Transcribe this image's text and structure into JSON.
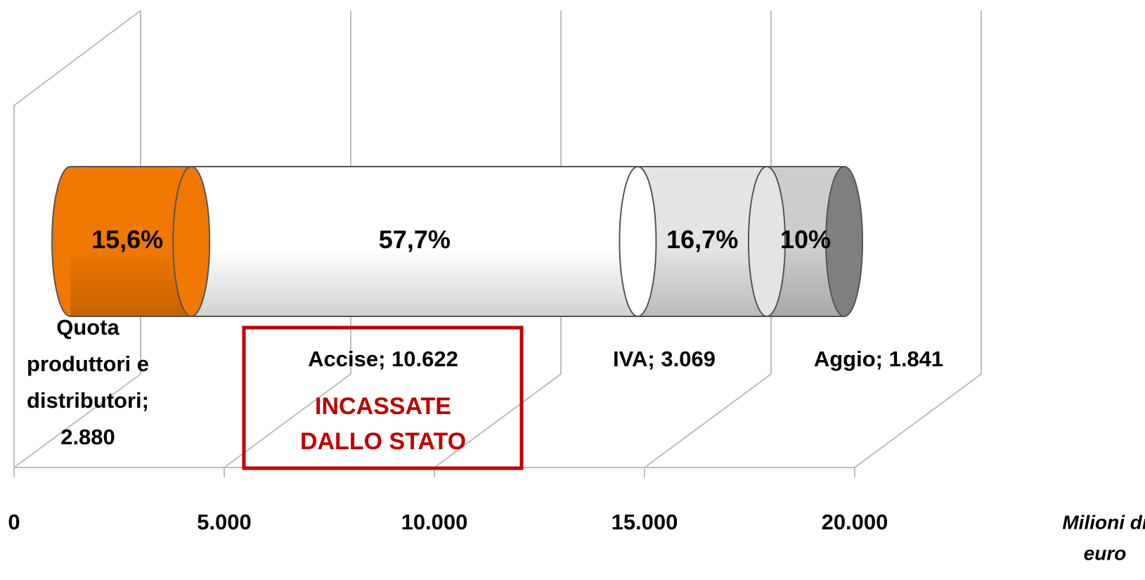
{
  "chart_data": {
    "type": "bar",
    "orientation": "horizontal",
    "stacked": true,
    "series": [
      {
        "label_lines": [
          "Quota",
          "produttori e",
          "distributori;",
          "2.880"
        ],
        "values": [
          2880
        ],
        "share": 15.6,
        "share_label": "15,6%",
        "color": "#f07800"
      },
      {
        "label_lines": [
          "Accise; 10.622"
        ],
        "values": [
          10622
        ],
        "share": 57.7,
        "share_label": "57,7%",
        "color": "#ffffff"
      },
      {
        "label_lines": [
          "IVA; 3.069"
        ],
        "values": [
          3069
        ],
        "share": 16.7,
        "share_label": "16,7%",
        "color": "#e4e4e4"
      },
      {
        "label_lines": [
          "Aggio; 1.841"
        ],
        "values": [
          1841
        ],
        "share": 10,
        "share_label": "10%",
        "color": "#cdcdcd"
      }
    ],
    "xlim": [
      0,
      20000
    ],
    "xticks": [
      0,
      {
        "value": 5000,
        "label": "5.000"
      },
      {
        "value": 10000,
        "label": "10.000"
      },
      {
        "value": 15000,
        "label": "15.000"
      },
      {
        "value": 20000,
        "label": "20.000"
      }
    ],
    "xlabel_lines": [
      "Milioni di",
      "euro"
    ],
    "grid": true,
    "annotation_lines": [
      "INCASSATE",
      "DALLO STATO"
    ],
    "annotation_color": "#c00000"
  }
}
